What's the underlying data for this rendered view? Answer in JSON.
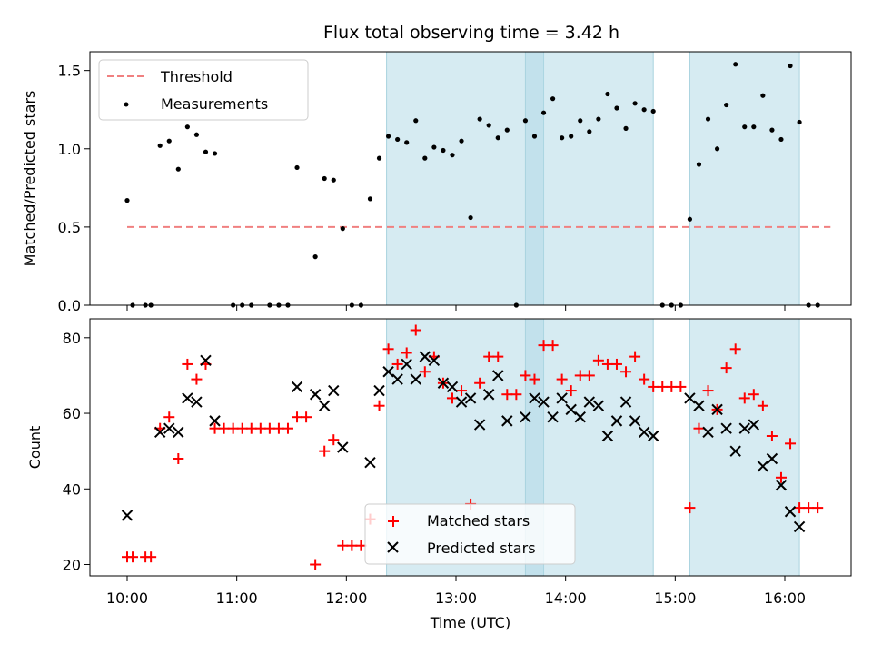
{
  "title": "Flux total observing time = 3.42 h",
  "xlabel": "Time (UTC)",
  "x_ticks": [
    "10:00",
    "11:00",
    "12:00",
    "13:00",
    "14:00",
    "15:00",
    "16:00"
  ],
  "observing_windows": [
    [
      "12:22",
      "13:48"
    ],
    [
      "13:38",
      "14:48"
    ],
    [
      "15:08",
      "16:08"
    ]
  ],
  "chart_data": [
    {
      "type": "scatter",
      "ylabel": "Matched/Predicted stars",
      "ylim": [
        0,
        1.62
      ],
      "y_ticks": [
        "0.0",
        "0.5",
        "1.0",
        "1.5"
      ],
      "legend": {
        "placement": "top-left",
        "entries": [
          "Threshold",
          "Measurements"
        ]
      },
      "threshold": {
        "name": "Threshold",
        "y": 0.5,
        "x_range": [
          "10:00",
          "16:25"
        ],
        "color": "#f08080"
      },
      "series": [
        {
          "name": "Measurements",
          "color": "#000000",
          "points": [
            [
              "10:00",
              0.67
            ],
            [
              "10:03",
              0
            ],
            [
              "10:10",
              0
            ],
            [
              "10:13",
              0
            ],
            [
              "10:18",
              1.02
            ],
            [
              "10:23",
              1.05
            ],
            [
              "10:28",
              0.87
            ],
            [
              "10:33",
              1.14
            ],
            [
              "10:38",
              1.09
            ],
            [
              "10:43",
              0.98
            ],
            [
              "10:48",
              0.97
            ],
            [
              "10:58",
              0
            ],
            [
              "11:03",
              0
            ],
            [
              "11:08",
              0
            ],
            [
              "11:18",
              0
            ],
            [
              "11:23",
              0
            ],
            [
              "11:28",
              0
            ],
            [
              "11:33",
              0.88
            ],
            [
              "11:43",
              0.31
            ],
            [
              "11:48",
              0.81
            ],
            [
              "11:53",
              0.8
            ],
            [
              "11:58",
              0.49
            ],
            [
              "12:03",
              0
            ],
            [
              "12:08",
              0
            ],
            [
              "12:13",
              0.68
            ],
            [
              "12:18",
              0.94
            ],
            [
              "12:23",
              1.08
            ],
            [
              "12:28",
              1.06
            ],
            [
              "12:33",
              1.04
            ],
            [
              "12:38",
              1.18
            ],
            [
              "12:43",
              0.94
            ],
            [
              "12:48",
              1.01
            ],
            [
              "12:53",
              0.99
            ],
            [
              "12:58",
              0.96
            ],
            [
              "13:03",
              1.05
            ],
            [
              "13:08",
              0.56
            ],
            [
              "13:13",
              1.19
            ],
            [
              "13:18",
              1.15
            ],
            [
              "13:23",
              1.07
            ],
            [
              "13:28",
              1.12
            ],
            [
              "13:33",
              0
            ],
            [
              "13:38",
              1.18
            ],
            [
              "13:43",
              1.08
            ],
            [
              "13:48",
              1.23
            ],
            [
              "13:53",
              1.32
            ],
            [
              "13:58",
              1.07
            ],
            [
              "14:03",
              1.08
            ],
            [
              "14:08",
              1.18
            ],
            [
              "14:13",
              1.11
            ],
            [
              "14:18",
              1.19
            ],
            [
              "14:23",
              1.35
            ],
            [
              "14:28",
              1.26
            ],
            [
              "14:33",
              1.13
            ],
            [
              "14:38",
              1.29
            ],
            [
              "14:43",
              1.25
            ],
            [
              "14:48",
              1.24
            ],
            [
              "14:53",
              0
            ],
            [
              "14:58",
              0
            ],
            [
              "15:03",
              0
            ],
            [
              "15:08",
              0.55
            ],
            [
              "15:13",
              0.9
            ],
            [
              "15:18",
              1.19
            ],
            [
              "15:23",
              1.0
            ],
            [
              "15:28",
              1.28
            ],
            [
              "15:33",
              1.54
            ],
            [
              "15:38",
              1.14
            ],
            [
              "15:43",
              1.14
            ],
            [
              "15:48",
              1.34
            ],
            [
              "15:53",
              1.12
            ],
            [
              "15:58",
              1.06
            ],
            [
              "16:03",
              1.53
            ],
            [
              "16:08",
              1.17
            ],
            [
              "16:13",
              0
            ],
            [
              "16:18",
              0
            ]
          ]
        }
      ]
    },
    {
      "type": "scatter",
      "ylabel": "Count",
      "ylim": [
        17,
        85
      ],
      "y_ticks": [
        "20",
        "40",
        "60",
        "80"
      ],
      "legend": {
        "placement": "bottom-center",
        "entries": [
          "Matched stars",
          "Predicted stars"
        ]
      },
      "series": [
        {
          "name": "Matched stars",
          "marker": "plus",
          "color": "#ff0000",
          "points": [
            [
              "10:00",
              22
            ],
            [
              "10:03",
              22
            ],
            [
              "10:10",
              22
            ],
            [
              "10:13",
              22
            ],
            [
              "10:18",
              56
            ],
            [
              "10:23",
              59
            ],
            [
              "10:28",
              48
            ],
            [
              "10:33",
              73
            ],
            [
              "10:38",
              69
            ],
            [
              "10:43",
              73
            ],
            [
              "10:48",
              56
            ],
            [
              "10:53",
              56
            ],
            [
              "10:58",
              56
            ],
            [
              "11:03",
              56
            ],
            [
              "11:08",
              56
            ],
            [
              "11:13",
              56
            ],
            [
              "11:18",
              56
            ],
            [
              "11:23",
              56
            ],
            [
              "11:28",
              56
            ],
            [
              "11:33",
              59
            ],
            [
              "11:38",
              59
            ],
            [
              "11:43",
              20
            ],
            [
              "11:48",
              50
            ],
            [
              "11:53",
              53
            ],
            [
              "11:58",
              25
            ],
            [
              "12:03",
              25
            ],
            [
              "12:08",
              25
            ],
            [
              "12:13",
              32
            ],
            [
              "12:18",
              62
            ],
            [
              "12:23",
              77
            ],
            [
              "12:28",
              73
            ],
            [
              "12:33",
              76
            ],
            [
              "12:38",
              82
            ],
            [
              "12:43",
              71
            ],
            [
              "12:48",
              75
            ],
            [
              "12:53",
              68
            ],
            [
              "12:58",
              64
            ],
            [
              "13:03",
              66
            ],
            [
              "13:08",
              36
            ],
            [
              "13:13",
              68
            ],
            [
              "13:18",
              75
            ],
            [
              "13:23",
              75
            ],
            [
              "13:28",
              65
            ],
            [
              "13:33",
              65
            ],
            [
              "13:38",
              70
            ],
            [
              "13:43",
              69
            ],
            [
              "13:48",
              78
            ],
            [
              "13:53",
              78
            ],
            [
              "13:58",
              69
            ],
            [
              "14:03",
              66
            ],
            [
              "14:08",
              70
            ],
            [
              "14:13",
              70
            ],
            [
              "14:18",
              74
            ],
            [
              "14:23",
              73
            ],
            [
              "14:28",
              73
            ],
            [
              "14:33",
              71
            ],
            [
              "14:38",
              75
            ],
            [
              "14:43",
              69
            ],
            [
              "14:48",
              67
            ],
            [
              "14:53",
              67
            ],
            [
              "14:58",
              67
            ],
            [
              "15:03",
              67
            ],
            [
              "15:08",
              35
            ],
            [
              "15:13",
              56
            ],
            [
              "15:18",
              66
            ],
            [
              "15:23",
              61
            ],
            [
              "15:28",
              72
            ],
            [
              "15:33",
              77
            ],
            [
              "15:38",
              64
            ],
            [
              "15:43",
              65
            ],
            [
              "15:48",
              62
            ],
            [
              "15:53",
              54
            ],
            [
              "15:58",
              43
            ],
            [
              "16:03",
              52
            ],
            [
              "16:08",
              35
            ],
            [
              "16:13",
              35
            ],
            [
              "16:18",
              35
            ]
          ]
        },
        {
          "name": "Predicted stars",
          "marker": "x",
          "color": "#000000",
          "points": [
            [
              "10:00",
              33
            ],
            [
              "10:18",
              55
            ],
            [
              "10:23",
              56
            ],
            [
              "10:28",
              55
            ],
            [
              "10:33",
              64
            ],
            [
              "10:38",
              63
            ],
            [
              "10:43",
              74
            ],
            [
              "10:48",
              58
            ],
            [
              "11:33",
              67
            ],
            [
              "11:43",
              65
            ],
            [
              "11:48",
              62
            ],
            [
              "11:53",
              66
            ],
            [
              "11:58",
              51
            ],
            [
              "12:13",
              47
            ],
            [
              "12:18",
              66
            ],
            [
              "12:23",
              71
            ],
            [
              "12:28",
              69
            ],
            [
              "12:33",
              73
            ],
            [
              "12:38",
              69
            ],
            [
              "12:43",
              75
            ],
            [
              "12:48",
              74
            ],
            [
              "12:53",
              68
            ],
            [
              "12:58",
              67
            ],
            [
              "13:03",
              63
            ],
            [
              "13:08",
              64
            ],
            [
              "13:13",
              57
            ],
            [
              "13:18",
              65
            ],
            [
              "13:23",
              70
            ],
            [
              "13:28",
              58
            ],
            [
              "13:38",
              59
            ],
            [
              "13:43",
              64
            ],
            [
              "13:48",
              63
            ],
            [
              "13:53",
              59
            ],
            [
              "13:58",
              64
            ],
            [
              "14:03",
              61
            ],
            [
              "14:08",
              59
            ],
            [
              "14:13",
              63
            ],
            [
              "14:18",
              62
            ],
            [
              "14:23",
              54
            ],
            [
              "14:28",
              58
            ],
            [
              "14:33",
              63
            ],
            [
              "14:38",
              58
            ],
            [
              "14:43",
              55
            ],
            [
              "14:48",
              54
            ],
            [
              "15:08",
              64
            ],
            [
              "15:13",
              62
            ],
            [
              "15:18",
              55
            ],
            [
              "15:23",
              61
            ],
            [
              "15:28",
              56
            ],
            [
              "15:33",
              50
            ],
            [
              "15:38",
              56
            ],
            [
              "15:43",
              57
            ],
            [
              "15:48",
              46
            ],
            [
              "15:53",
              48
            ],
            [
              "15:58",
              41
            ],
            [
              "16:03",
              34
            ],
            [
              "16:08",
              30
            ]
          ]
        }
      ]
    }
  ]
}
